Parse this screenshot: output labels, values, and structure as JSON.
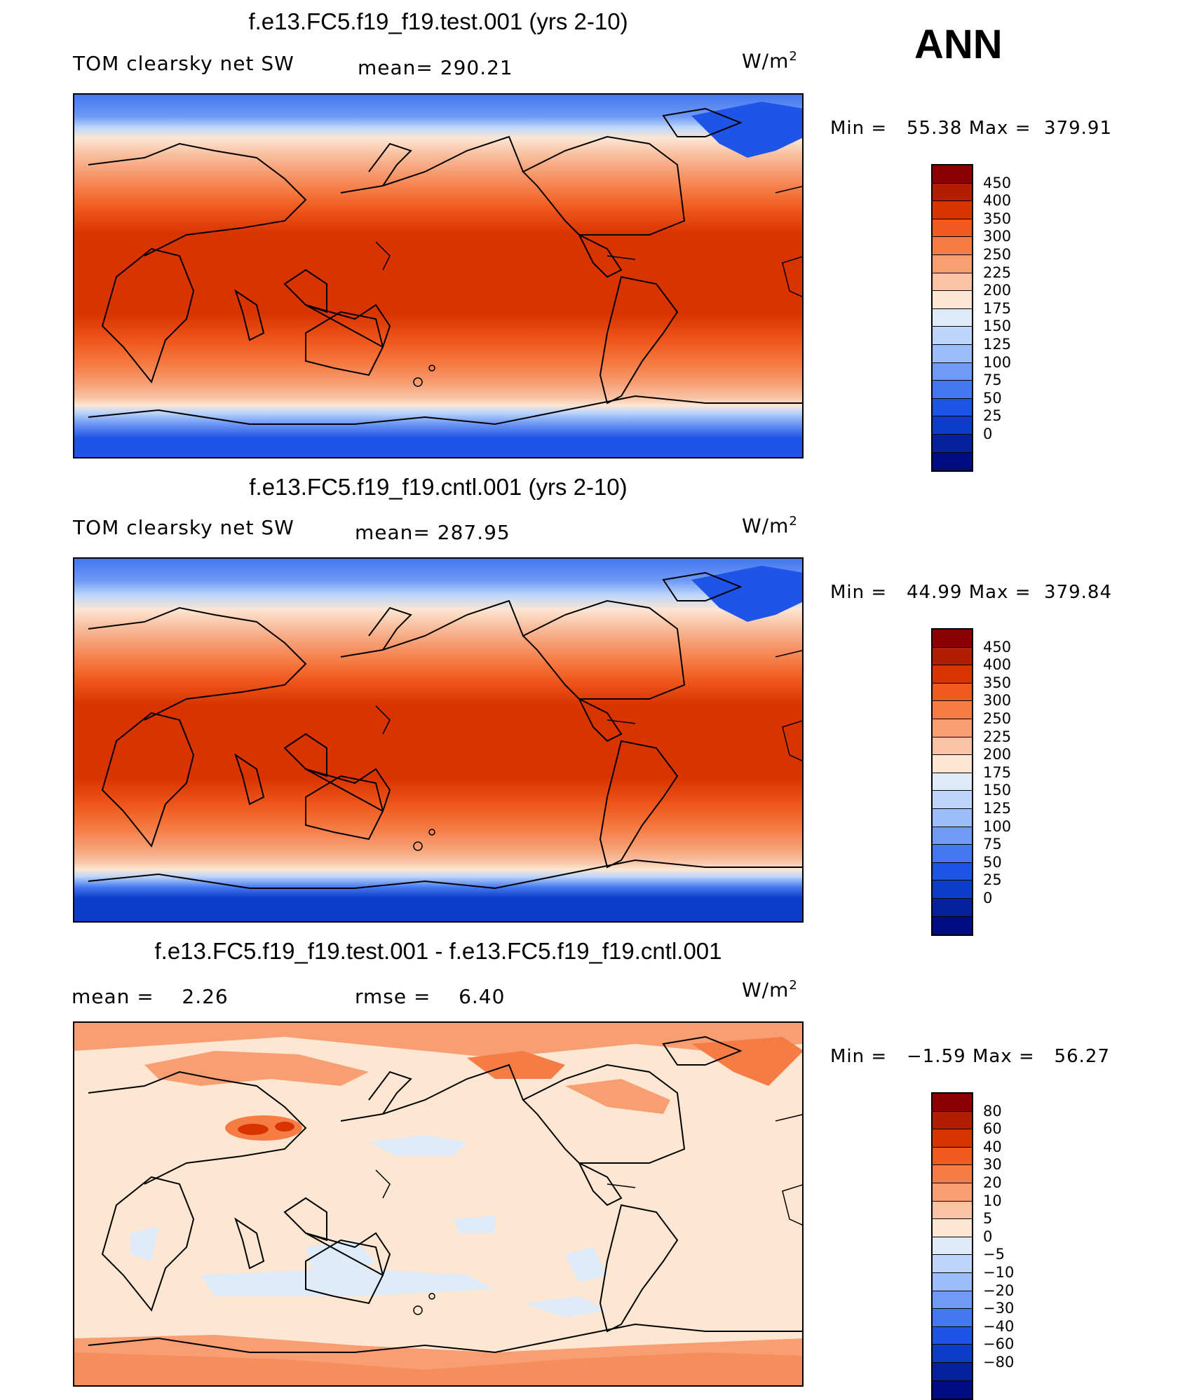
{
  "season": "ANN",
  "units_base": "W/m",
  "units_exp": "2",
  "panels": [
    {
      "id": "test",
      "title": "f.e13.FC5.f19_f19.test.001 (yrs 2-10)",
      "variable": "TOM clearsky net SW",
      "mean_label": "mean= 290.21",
      "min_label": "Min =",
      "min_value": "55.38",
      "max_label": "Max =",
      "max_value": "379.91",
      "levels": [
        "450",
        "400",
        "350",
        "300",
        "250",
        "225",
        "200",
        "175",
        "150",
        "125",
        "100",
        "75",
        "50",
        "25",
        "0"
      ],
      "colors": [
        "#8B0000",
        "#B31E00",
        "#D93300",
        "#F05A1E",
        "#F57C45",
        "#F79E73",
        "#F9C3A4",
        "#FDE6D2",
        "#DDEBFA",
        "#BDD6FA",
        "#9BBEFA",
        "#6F9AF5",
        "#4477F0",
        "#1F55E6",
        "#0C3CC8",
        "#06219C",
        "#000C82"
      ]
    },
    {
      "id": "cntl",
      "title": "f.e13.FC5.f19_f19.cntl.001 (yrs 2-10)",
      "variable": "TOM clearsky net SW",
      "mean_label": "mean= 287.95",
      "min_label": "Min =",
      "min_value": "44.99",
      "max_label": "Max =",
      "max_value": "379.84",
      "levels": [
        "450",
        "400",
        "350",
        "300",
        "250",
        "225",
        "200",
        "175",
        "150",
        "125",
        "100",
        "75",
        "50",
        "25",
        "0"
      ],
      "colors": [
        "#8B0000",
        "#B31E00",
        "#D93300",
        "#F05A1E",
        "#F57C45",
        "#F79E73",
        "#F9C3A4",
        "#FDE6D2",
        "#DDEBFA",
        "#BDD6FA",
        "#9BBEFA",
        "#6F9AF5",
        "#4477F0",
        "#1F55E6",
        "#0C3CC8",
        "#06219C",
        "#000C82"
      ]
    },
    {
      "id": "diff",
      "title": "f.e13.FC5.f19_f19.test.001 - f.e13.FC5.f19_f19.cntl.001",
      "mean_label": "mean =",
      "mean_value": "2.26",
      "rmse_label": "rmse =",
      "rmse_value": "6.40",
      "min_label": "Min =",
      "min_value": "−1.59",
      "max_label": "Max =",
      "max_value": "56.27",
      "levels": [
        "80",
        "60",
        "40",
        "30",
        "20",
        "10",
        "5",
        "0",
        "−5",
        "−10",
        "−20",
        "−30",
        "−40",
        "−60",
        "−80"
      ],
      "colors": [
        "#8B0000",
        "#B31E00",
        "#D93300",
        "#F05A1E",
        "#F57C45",
        "#F79E73",
        "#F9C3A4",
        "#FDE6D2",
        "#DDEBFA",
        "#BDD6FA",
        "#9BBEFA",
        "#6F9AF5",
        "#4477F0",
        "#1F55E6",
        "#0C3CC8",
        "#06219C",
        "#000C82"
      ]
    }
  ]
}
